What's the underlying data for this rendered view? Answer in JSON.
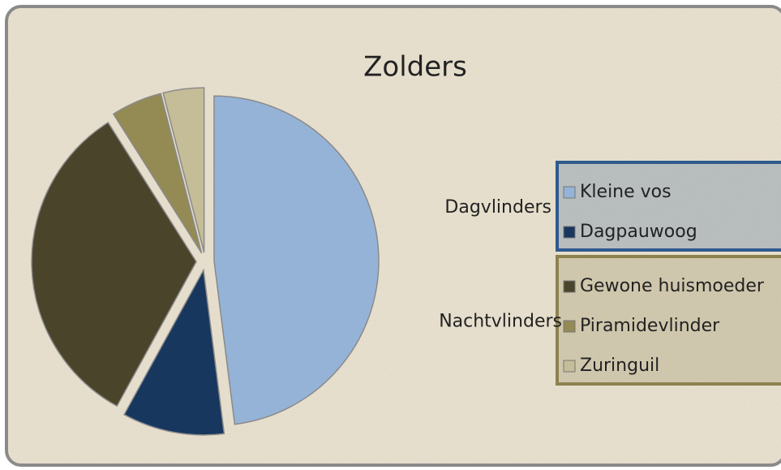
{
  "chart_data": {
    "type": "pie",
    "title": "Zolders",
    "groups": [
      {
        "name": "Dagvlinders",
        "categories": [
          "Kleine vos",
          "Dagpauwoog"
        ],
        "values": [
          48,
          10
        ],
        "colors": [
          "#95b3d7",
          "#17375e"
        ],
        "legend_color": "#2f5a8f"
      },
      {
        "name": "Nachtvlinders",
        "categories": [
          "Gewone huismoeder",
          "Piramidevlinder",
          "Zuringuil"
        ],
        "values": [
          33,
          5,
          4
        ],
        "colors": [
          "#4a452a",
          "#948a54",
          "#c4bd97"
        ],
        "legend_color": "#8c8250"
      }
    ]
  }
}
